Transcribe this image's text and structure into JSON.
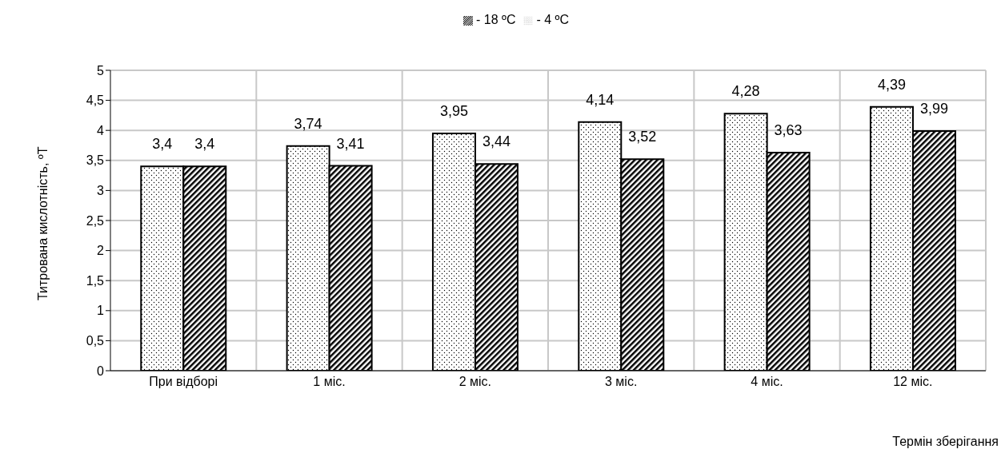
{
  "chart_data": {
    "type": "bar",
    "xlabel": "Термін зберігання",
    "ylabel": "Титрована кислотність, ºТ",
    "categories": [
      "При відборі",
      "1 міс.",
      "2 міс.",
      "3 міс.",
      "4 міс.",
      "12 міс."
    ],
    "series": [
      {
        "name": "- 4 ºC",
        "color": "#000000",
        "values": [
          3.4,
          3.74,
          3.95,
          4.14,
          4.28,
          4.39
        ],
        "value_labels": [
          "3,4",
          "3,74",
          "3,95",
          "4,14",
          "4,28",
          "4,39"
        ]
      },
      {
        "name": "- 18 ºC",
        "color": "#000000",
        "values": [
          3.4,
          3.41,
          3.44,
          3.52,
          3.63,
          3.99
        ],
        "value_labels": [
          "3,4",
          "3,41",
          "3,44",
          "3,52",
          "3,63",
          "3,99"
        ]
      }
    ],
    "ylim": [
      0,
      5
    ],
    "yticks": [
      0,
      {
        "value": 0.5,
        "label": "0,5"
      },
      1,
      {
        "value": 1.5,
        "label": "1,5"
      },
      2,
      {
        "value": 2.5,
        "label": "2,5"
      },
      3,
      {
        "value": 3.5,
        "label": "3,5"
      },
      4,
      {
        "value": 4.5,
        "label": "4,5"
      },
      5
    ],
    "grid": true,
    "legend": "top"
  }
}
